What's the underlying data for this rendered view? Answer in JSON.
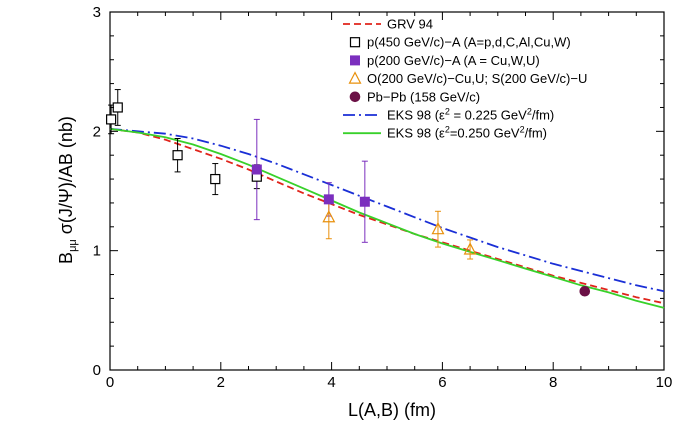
{
  "chart_data": {
    "type": "scatter",
    "title": "",
    "xlabel": "L(A,B) (fm)",
    "ylabel_parts": {
      "main": "B",
      "sub": "μμ",
      "rest": " σ(J/Ψ)/AB (nb)"
    },
    "xlim": [
      0,
      10
    ],
    "ylim": [
      0,
      3
    ],
    "x_ticks": [
      0,
      2,
      4,
      6,
      8,
      10
    ],
    "y_ticks": [
      0,
      1,
      2,
      3
    ],
    "grid": false,
    "legend_position": "top-right",
    "series": [
      {
        "name": "p(450 GeV/c)−A (A=p,d,C,Al,Cu,W)",
        "kind": "points",
        "marker": "open-square",
        "color": "#000000",
        "x": [
          0.02,
          0.14,
          1.22,
          1.9,
          2.65
        ],
        "y": [
          2.1,
          2.2,
          1.8,
          1.6,
          1.62
        ],
        "err": [
          0.12,
          0.15,
          0.14,
          0.13,
          0.1
        ]
      },
      {
        "name": "p(200 GeV/c)−A (A = Cu,W,U)",
        "kind": "points",
        "marker": "filled-square",
        "color": "#7b2fbe",
        "x": [
          2.65,
          3.95,
          4.6
        ],
        "y": [
          1.68,
          1.43,
          1.41
        ],
        "err": [
          0.42,
          0.14,
          0.34
        ]
      },
      {
        "name": "O(200 GeV/c)−Cu,U; S(200 GeV/c)−U",
        "kind": "points",
        "marker": "open-triangle",
        "color": "#e8900c",
        "x": [
          3.95,
          5.92,
          6.5
        ],
        "y": [
          1.28,
          1.18,
          1.01
        ],
        "err": [
          0.18,
          0.15,
          0.08
        ]
      },
      {
        "name": "Pb−Pb (158 GeV/c)",
        "kind": "points",
        "marker": "filled-circle",
        "color": "#6b1146",
        "x": [
          8.57
        ],
        "y": [
          0.66
        ],
        "err": [
          0.02
        ]
      },
      {
        "name": "GRV 94",
        "kind": "line",
        "dash": "dashed",
        "color": "#e0241b",
        "x": [
          0,
          0.5,
          1,
          1.5,
          2,
          2.5,
          3,
          3.5,
          4,
          4.5,
          5,
          5.5,
          6,
          6.5,
          7,
          7.5,
          8,
          8.5,
          9,
          9.5,
          10
        ],
        "y": [
          2.02,
          1.99,
          1.93,
          1.85,
          1.77,
          1.68,
          1.58,
          1.48,
          1.39,
          1.3,
          1.22,
          1.14,
          1.07,
          1.0,
          0.93,
          0.86,
          0.79,
          0.73,
          0.67,
          0.61,
          0.56
        ]
      },
      {
        "name_parts": {
          "before": "EKS 98  (ε",
          "sup": "2",
          "mid": " = 0.225 GeV",
          "sup2": "2",
          "after": "/fm)"
        },
        "kind": "line",
        "dash": "dashdot",
        "color": "#1a2fd6",
        "x": [
          0,
          0.5,
          1,
          1.5,
          2,
          2.5,
          3,
          3.5,
          4,
          4.5,
          5,
          5.5,
          6,
          6.5,
          7,
          7.5,
          8,
          8.5,
          9,
          9.5,
          10
        ],
        "y": [
          2.02,
          2.0,
          1.98,
          1.94,
          1.88,
          1.81,
          1.73,
          1.64,
          1.55,
          1.46,
          1.37,
          1.28,
          1.19,
          1.11,
          1.03,
          0.96,
          0.89,
          0.83,
          0.77,
          0.71,
          0.66
        ]
      },
      {
        "name_parts": {
          "before": "EKS 98  (ε",
          "sup": "2",
          "mid": "=0.250 GeV",
          "sup2": "2",
          "after": "/fm)"
        },
        "kind": "line",
        "dash": "solid",
        "color": "#38d12a",
        "x": [
          0,
          0.5,
          1,
          1.5,
          2,
          2.5,
          3,
          3.5,
          4,
          4.5,
          5,
          5.5,
          6,
          6.5,
          7,
          7.5,
          8,
          8.5,
          9,
          9.5,
          10
        ],
        "y": [
          2.02,
          1.99,
          1.95,
          1.89,
          1.81,
          1.72,
          1.62,
          1.52,
          1.42,
          1.32,
          1.23,
          1.14,
          1.06,
          0.99,
          0.92,
          0.85,
          0.78,
          0.71,
          0.65,
          0.58,
          0.52
        ]
      }
    ],
    "legend_order": [
      4,
      0,
      1,
      2,
      3,
      5,
      6
    ]
  }
}
